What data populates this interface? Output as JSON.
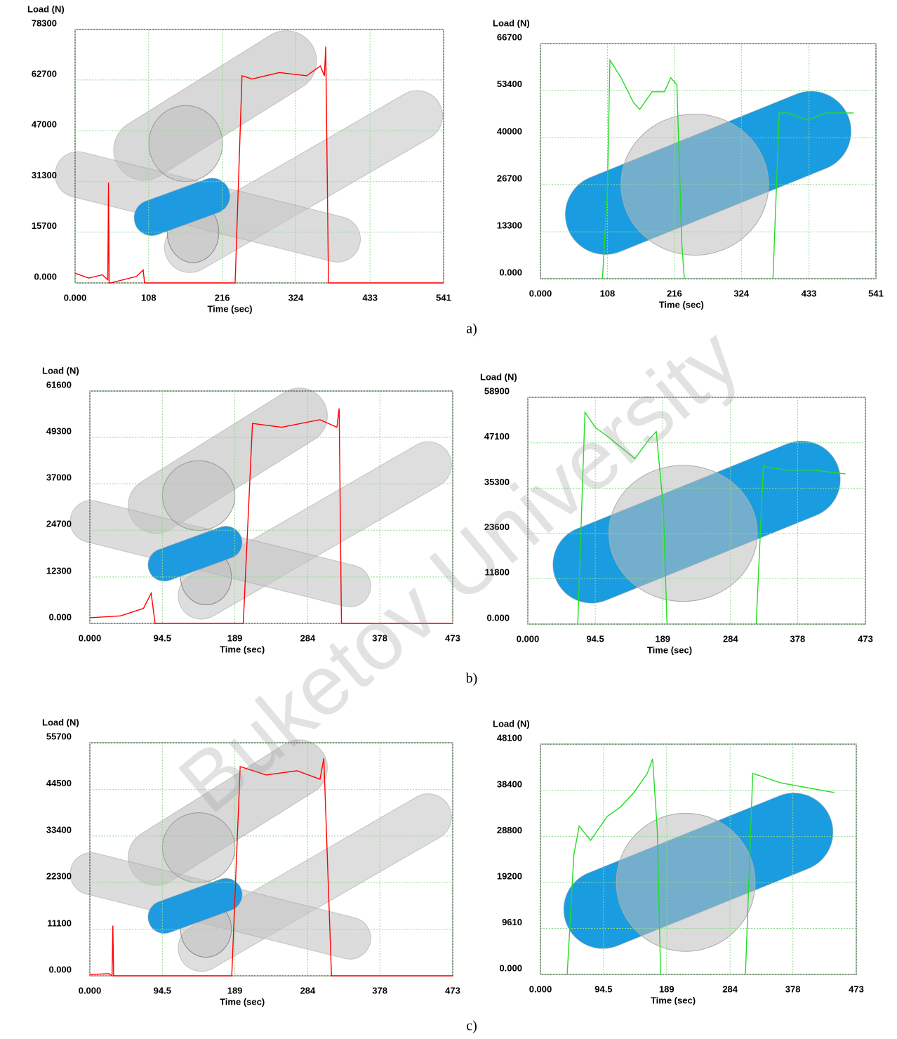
{
  "chart_data": [
    {
      "type": "line",
      "y_label": "Load (N)",
      "x_label": "Time (sec)",
      "color": "#ff0000",
      "grid": true,
      "xlim": [
        0,
        541
      ],
      "ylim": [
        0,
        78300
      ],
      "xticks": [
        {
          "value": 0,
          "label": "0.000"
        },
        108,
        216,
        324,
        433,
        541
      ],
      "yticks": [
        {
          "value": 0,
          "label": "0.000"
        },
        15700,
        31300,
        47000,
        62700,
        78300
      ],
      "x": [
        0,
        20,
        40,
        48,
        49,
        50,
        52,
        90,
        100,
        102,
        235,
        245,
        260,
        300,
        340,
        360,
        366,
        368,
        372,
        541
      ],
      "values": [
        3000,
        1500,
        2500,
        1000,
        31000,
        0,
        0,
        2000,
        4000,
        0,
        0,
        64000,
        63000,
        65000,
        64000,
        67000,
        64000,
        73000,
        0,
        0
      ]
    },
    {
      "type": "line",
      "y_label": "Load (N)",
      "x_label": "Time (sec)",
      "color": "#22dd22",
      "grid": true,
      "xlim": [
        0,
        541
      ],
      "ylim": [
        0,
        66700
      ],
      "xticks": [
        {
          "value": 0,
          "label": "0.000"
        },
        108,
        216,
        324,
        433,
        541
      ],
      "yticks": [
        {
          "value": 0,
          "label": "0.000"
        },
        13300,
        26700,
        40000,
        53400,
        66700
      ],
      "x": [
        100,
        108,
        112,
        130,
        150,
        160,
        180,
        200,
        210,
        220,
        228,
        232,
        300,
        375,
        385,
        400,
        430,
        460,
        505
      ],
      "values": [
        0,
        25000,
        62000,
        57000,
        50000,
        48000,
        53000,
        53000,
        57000,
        55000,
        10000,
        0,
        null,
        0,
        47000,
        47000,
        45000,
        47000,
        47000
      ]
    },
    {
      "type": "line",
      "y_label": "Load (N)",
      "x_label": "Time (sec)",
      "color": "#ff0000",
      "grid": true,
      "xlim": [
        0,
        473
      ],
      "ylim": [
        0,
        61600
      ],
      "xticks": [
        {
          "value": 0,
          "label": "0.000"
        },
        94.5,
        189,
        284,
        378,
        473
      ],
      "yticks": [
        {
          "value": 0,
          "label": "0.000"
        },
        12300,
        24700,
        37000,
        49300,
        61600
      ],
      "x": [
        0,
        40,
        70,
        80,
        85,
        200,
        212,
        250,
        300,
        322,
        325,
        328,
        473
      ],
      "values": [
        1500,
        2000,
        4000,
        8000,
        0,
        0,
        53000,
        52000,
        54000,
        52000,
        57000,
        0,
        0
      ]
    },
    {
      "type": "line",
      "y_label": "Load (N)",
      "x_label": "Time (sec)",
      "color": "#22dd22",
      "grid": true,
      "xlim": [
        0,
        473
      ],
      "ylim": [
        0,
        58900
      ],
      "xticks": [
        {
          "value": 0,
          "label": "0.000"
        },
        94.5,
        189,
        284,
        378,
        473
      ],
      "yticks": [
        {
          "value": 0,
          "label": "0.000"
        },
        11800,
        23600,
        35300,
        47100,
        58900
      ],
      "x": [
        70,
        80,
        95,
        110,
        130,
        150,
        170,
        180,
        190,
        195,
        250,
        320,
        330,
        360,
        400,
        445
      ],
      "values": [
        0,
        55000,
        51000,
        49000,
        46000,
        43000,
        48000,
        50000,
        30000,
        0,
        null,
        0,
        41000,
        40000,
        40000,
        39000
      ]
    },
    {
      "type": "line",
      "y_label": "Load (N)",
      "x_label": "Time (sec)",
      "color": "#ff0000",
      "grid": true,
      "xlim": [
        0,
        473
      ],
      "ylim": [
        0,
        55700
      ],
      "xticks": [
        {
          "value": 0,
          "label": "0.000"
        },
        94.5,
        189,
        284,
        378,
        473
      ],
      "yticks": [
        {
          "value": 0,
          "label": "0.000"
        },
        11100,
        22300,
        33400,
        44500,
        55700
      ],
      "x": [
        0,
        25,
        29,
        30,
        31,
        185,
        196,
        230,
        270,
        300,
        305,
        315,
        473
      ],
      "values": [
        300,
        500,
        0,
        12000,
        0,
        0,
        50000,
        48000,
        49000,
        47000,
        52000,
        0,
        0
      ]
    },
    {
      "type": "line",
      "y_label": "Load (N)",
      "x_label": "Time (sec)",
      "color": "#22dd22",
      "grid": true,
      "xlim": [
        0,
        473
      ],
      "ylim": [
        0,
        48100
      ],
      "xticks": [
        {
          "value": 0,
          "label": "0.000"
        },
        94.5,
        189,
        284,
        378,
        473
      ],
      "yticks": [
        {
          "value": 0,
          "label": "0.000"
        },
        9610,
        19200,
        28800,
        38400,
        48100
      ],
      "x": [
        40,
        50,
        58,
        75,
        100,
        120,
        140,
        160,
        168,
        175,
        180,
        250,
        307,
        318,
        360,
        400,
        440
      ],
      "values": [
        0,
        25000,
        31000,
        28000,
        33000,
        35000,
        38000,
        42000,
        45000,
        30000,
        0,
        null,
        0,
        42000,
        40000,
        39000,
        38000
      ]
    }
  ],
  "panel_labels": [
    "a)",
    "b)",
    "c)"
  ],
  "watermark": "Buketov University"
}
